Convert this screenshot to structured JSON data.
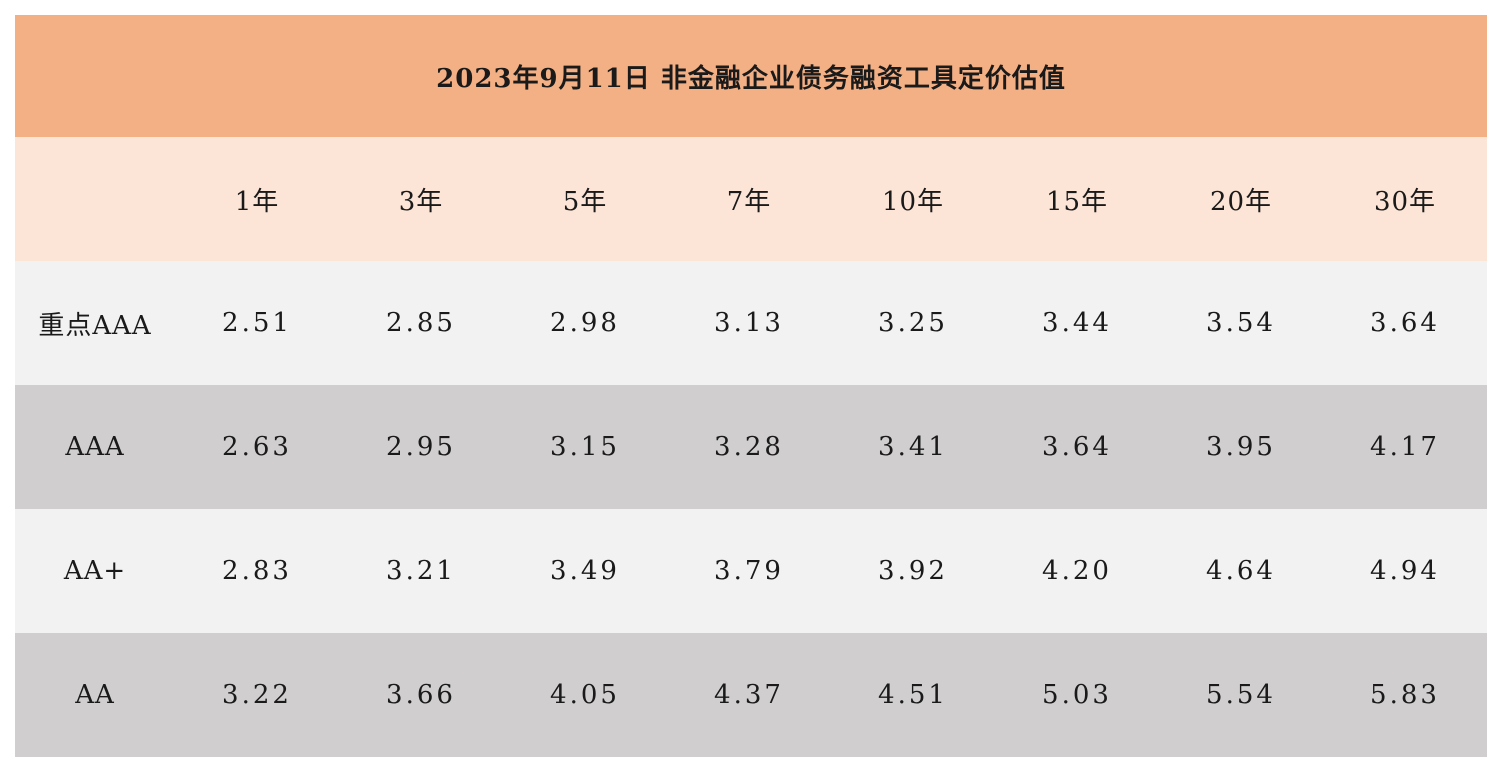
{
  "chart_data": {
    "type": "table",
    "title": "2023年9月11日  非金融企业债务融资工具定价估值",
    "columns": [
      "1年",
      "3年",
      "5年",
      "7年",
      "10年",
      "15年",
      "20年",
      "30年"
    ],
    "rows": [
      {
        "label": "重点AAA",
        "values": [
          "2.51",
          "2.85",
          "2.98",
          "3.13",
          "3.25",
          "3.44",
          "3.54",
          "3.64"
        ]
      },
      {
        "label": "AAA",
        "values": [
          "2.63",
          "2.95",
          "3.15",
          "3.28",
          "3.41",
          "3.64",
          "3.95",
          "4.17"
        ]
      },
      {
        "label": "AA+",
        "values": [
          "2.83",
          "3.21",
          "3.49",
          "3.79",
          "3.92",
          "4.20",
          "4.64",
          "4.94"
        ]
      },
      {
        "label": "AA",
        "values": [
          "3.22",
          "3.66",
          "4.05",
          "4.37",
          "4.51",
          "5.03",
          "5.54",
          "5.83"
        ]
      }
    ]
  },
  "colors": {
    "title_bg": "#f4b085",
    "header_bg": "#fce4d6",
    "row_light": "#f2f2f2",
    "row_dark": "#d0cece"
  }
}
